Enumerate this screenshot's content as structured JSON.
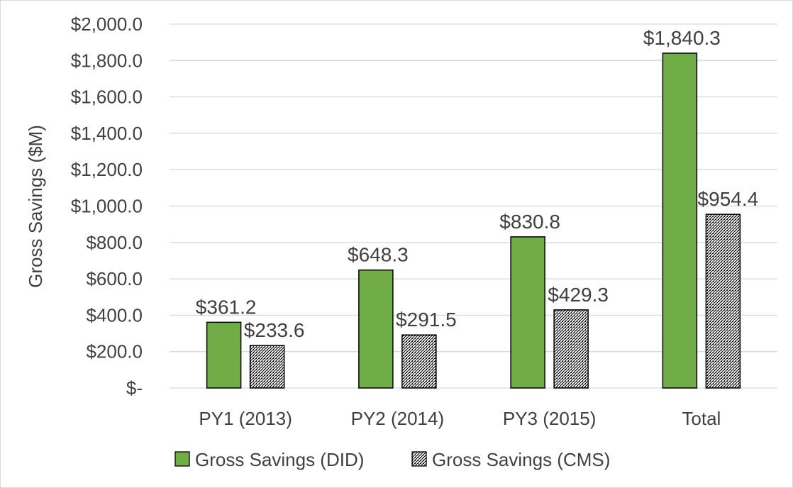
{
  "chart_data": {
    "type": "bar",
    "title": "",
    "xlabel": "",
    "ylabel": "Gross Savings ($M)",
    "categories": [
      "PY1 (2013)",
      "PY2 (2014)",
      "PY3 (2015)",
      "Total"
    ],
    "series": [
      {
        "name": "Gross Savings (DID)",
        "values": [
          361.2,
          648.3,
          830.8,
          1840.3
        ],
        "labels": [
          "$361.2",
          "$648.3",
          "$830.8",
          "$1,840.3"
        ],
        "color": "#70ad47",
        "pattern": "solid"
      },
      {
        "name": "Gross Savings (CMS)",
        "values": [
          233.6,
          291.5,
          429.3,
          954.4
        ],
        "labels": [
          "$233.6",
          "$291.5",
          "$429.3",
          "$954.4"
        ],
        "color": "#000000",
        "pattern": "dotted-hatch"
      }
    ],
    "ylim": [
      0,
      2000
    ],
    "yticks": [
      0,
      200,
      400,
      600,
      800,
      1000,
      1200,
      1400,
      1600,
      1800,
      2000
    ],
    "ytick_labels": [
      "$-",
      "$200.0",
      "$400.0",
      "$600.0",
      "$800.0",
      "$1,000.0",
      "$1,200.0",
      "$1,400.0",
      "$1,600.0",
      "$1,800.0",
      "$2,000.0"
    ],
    "grid": true,
    "legend_position": "bottom"
  }
}
